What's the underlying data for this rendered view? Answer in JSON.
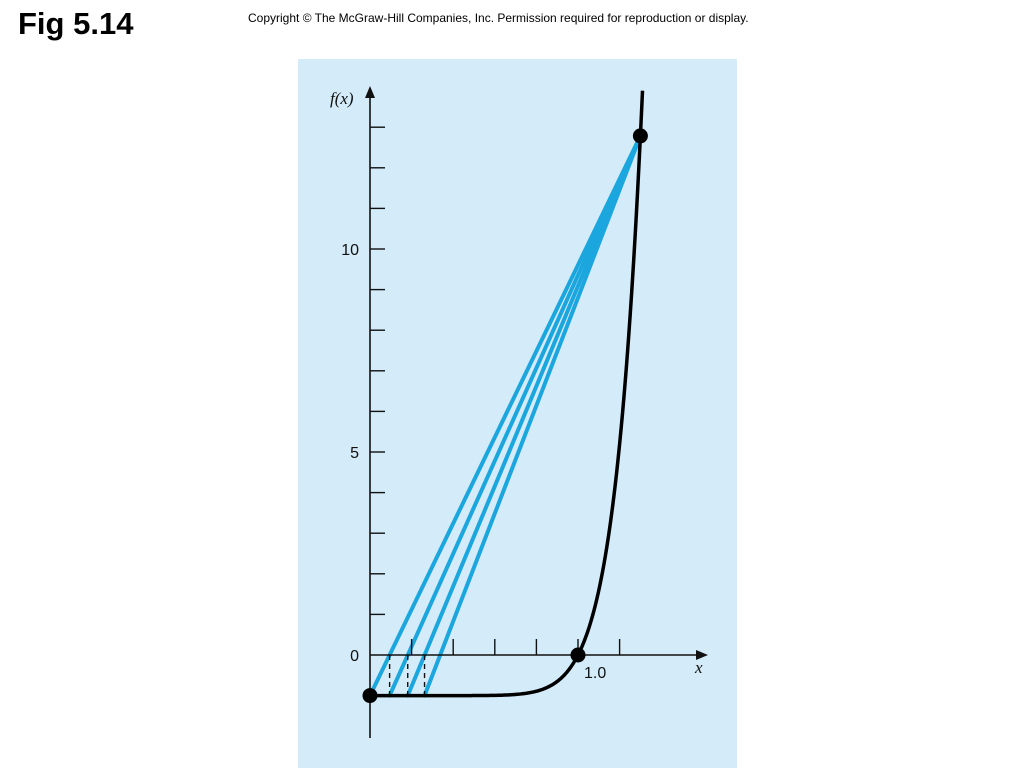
{
  "header": {
    "title": "Fig 5.14",
    "copyright": "Copyright © The McGraw-Hill Companies, Inc. Permission required for reproduction or display."
  },
  "colors": {
    "panel": "#d4ebf9",
    "curve": "#000000",
    "secant": "#1ba6de",
    "axis": "#111111"
  },
  "chart_data": {
    "type": "line",
    "title": "",
    "xlabel": "x",
    "ylabel": "f(x)",
    "xlim": [
      0,
      1.6
    ],
    "ylim": [
      -1.5,
      13.5
    ],
    "x_ticks": [
      0.2,
      0.4,
      0.6,
      0.8,
      1.0,
      1.2
    ],
    "x_tick_labels": [
      {
        "x": 1.0,
        "label": "1.0"
      }
    ],
    "y_ticks": [
      1,
      2,
      3,
      4,
      5,
      6,
      7,
      8,
      9,
      10,
      11,
      12,
      13
    ],
    "y_tick_labels": [
      {
        "y": 0,
        "label": "0"
      },
      {
        "y": 5,
        "label": "5"
      },
      {
        "y": 10,
        "label": "10"
      }
    ],
    "function": "f(x) = x^10 - 1",
    "series": [
      {
        "kind": "curve",
        "x": [
          0,
          0.2,
          0.4,
          0.5,
          0.6,
          0.7,
          0.8,
          0.85,
          0.9,
          0.95,
          1.0,
          1.05,
          1.1,
          1.15,
          1.2,
          1.25,
          1.3,
          1.33
        ],
        "y": [
          -1,
          -1,
          -1,
          -0.999,
          -0.994,
          -0.972,
          -0.893,
          -0.803,
          -0.651,
          -0.401,
          0,
          0.629,
          1.594,
          3.046,
          5.192,
          8.313,
          12.786,
          16.3
        ]
      },
      {
        "kind": "secant-lines",
        "from": [
          [
            0,
            -1
          ],
          [
            0.0943,
            -1
          ],
          [
            0.1814,
            -1
          ],
          [
            0.2622,
            -1
          ]
        ],
        "to": [
          1.3,
          12.786
        ]
      }
    ],
    "iterate_markers_x": [
      0.0943,
      0.1814,
      0.2622
    ],
    "points": [
      {
        "x": 0,
        "y": -1
      },
      {
        "x": 1.0,
        "y": 0
      },
      {
        "x": 1.3,
        "y": 12.786
      }
    ],
    "grid": false,
    "legend": "none"
  }
}
